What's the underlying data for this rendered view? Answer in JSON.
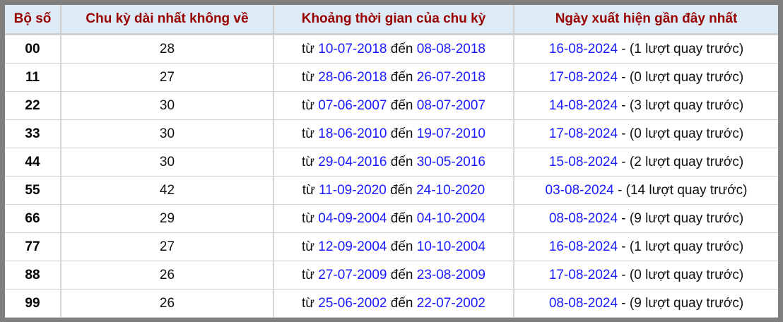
{
  "headers": [
    "Bộ số",
    "Chu kỳ dài nhất không về",
    "Khoảng thời gian của chu kỳ",
    "Ngày xuất hiện gần đây nhất"
  ],
  "labels": {
    "from": "từ",
    "to": "đến",
    "sep": " - "
  },
  "colors": {
    "header_text": "#990000",
    "header_bg": "#dcebf5",
    "date": "#1a1aff",
    "frame": "#7f7f7f"
  },
  "rows": [
    {
      "num": "00",
      "cycle": "28",
      "start": "10-07-2018",
      "end": "08-08-2018",
      "last": "16-08-2024",
      "note": "(1 lượt quay trước)"
    },
    {
      "num": "11",
      "cycle": "27",
      "start": "28-06-2018",
      "end": "26-07-2018",
      "last": "17-08-2024",
      "note": "(0 lượt quay trước)"
    },
    {
      "num": "22",
      "cycle": "30",
      "start": "07-06-2007",
      "end": "08-07-2007",
      "last": "14-08-2024",
      "note": "(3 lượt quay trước)"
    },
    {
      "num": "33",
      "cycle": "30",
      "start": "18-06-2010",
      "end": "19-07-2010",
      "last": "17-08-2024",
      "note": "(0 lượt quay trước)"
    },
    {
      "num": "44",
      "cycle": "30",
      "start": "29-04-2016",
      "end": "30-05-2016",
      "last": "15-08-2024",
      "note": "(2 lượt quay trước)"
    },
    {
      "num": "55",
      "cycle": "42",
      "start": "11-09-2020",
      "end": "24-10-2020",
      "last": "03-08-2024",
      "note": "(14 lượt quay trước)"
    },
    {
      "num": "66",
      "cycle": "29",
      "start": "04-09-2004",
      "end": "04-10-2004",
      "last": "08-08-2024",
      "note": "(9 lượt quay trước)"
    },
    {
      "num": "77",
      "cycle": "27",
      "start": "12-09-2004",
      "end": "10-10-2004",
      "last": "16-08-2024",
      "note": "(1 lượt quay trước)"
    },
    {
      "num": "88",
      "cycle": "26",
      "start": "27-07-2009",
      "end": "23-08-2009",
      "last": "17-08-2024",
      "note": "(0 lượt quay trước)"
    },
    {
      "num": "99",
      "cycle": "26",
      "start": "25-06-2002",
      "end": "22-07-2002",
      "last": "08-08-2024",
      "note": "(9 lượt quay trước)"
    }
  ]
}
